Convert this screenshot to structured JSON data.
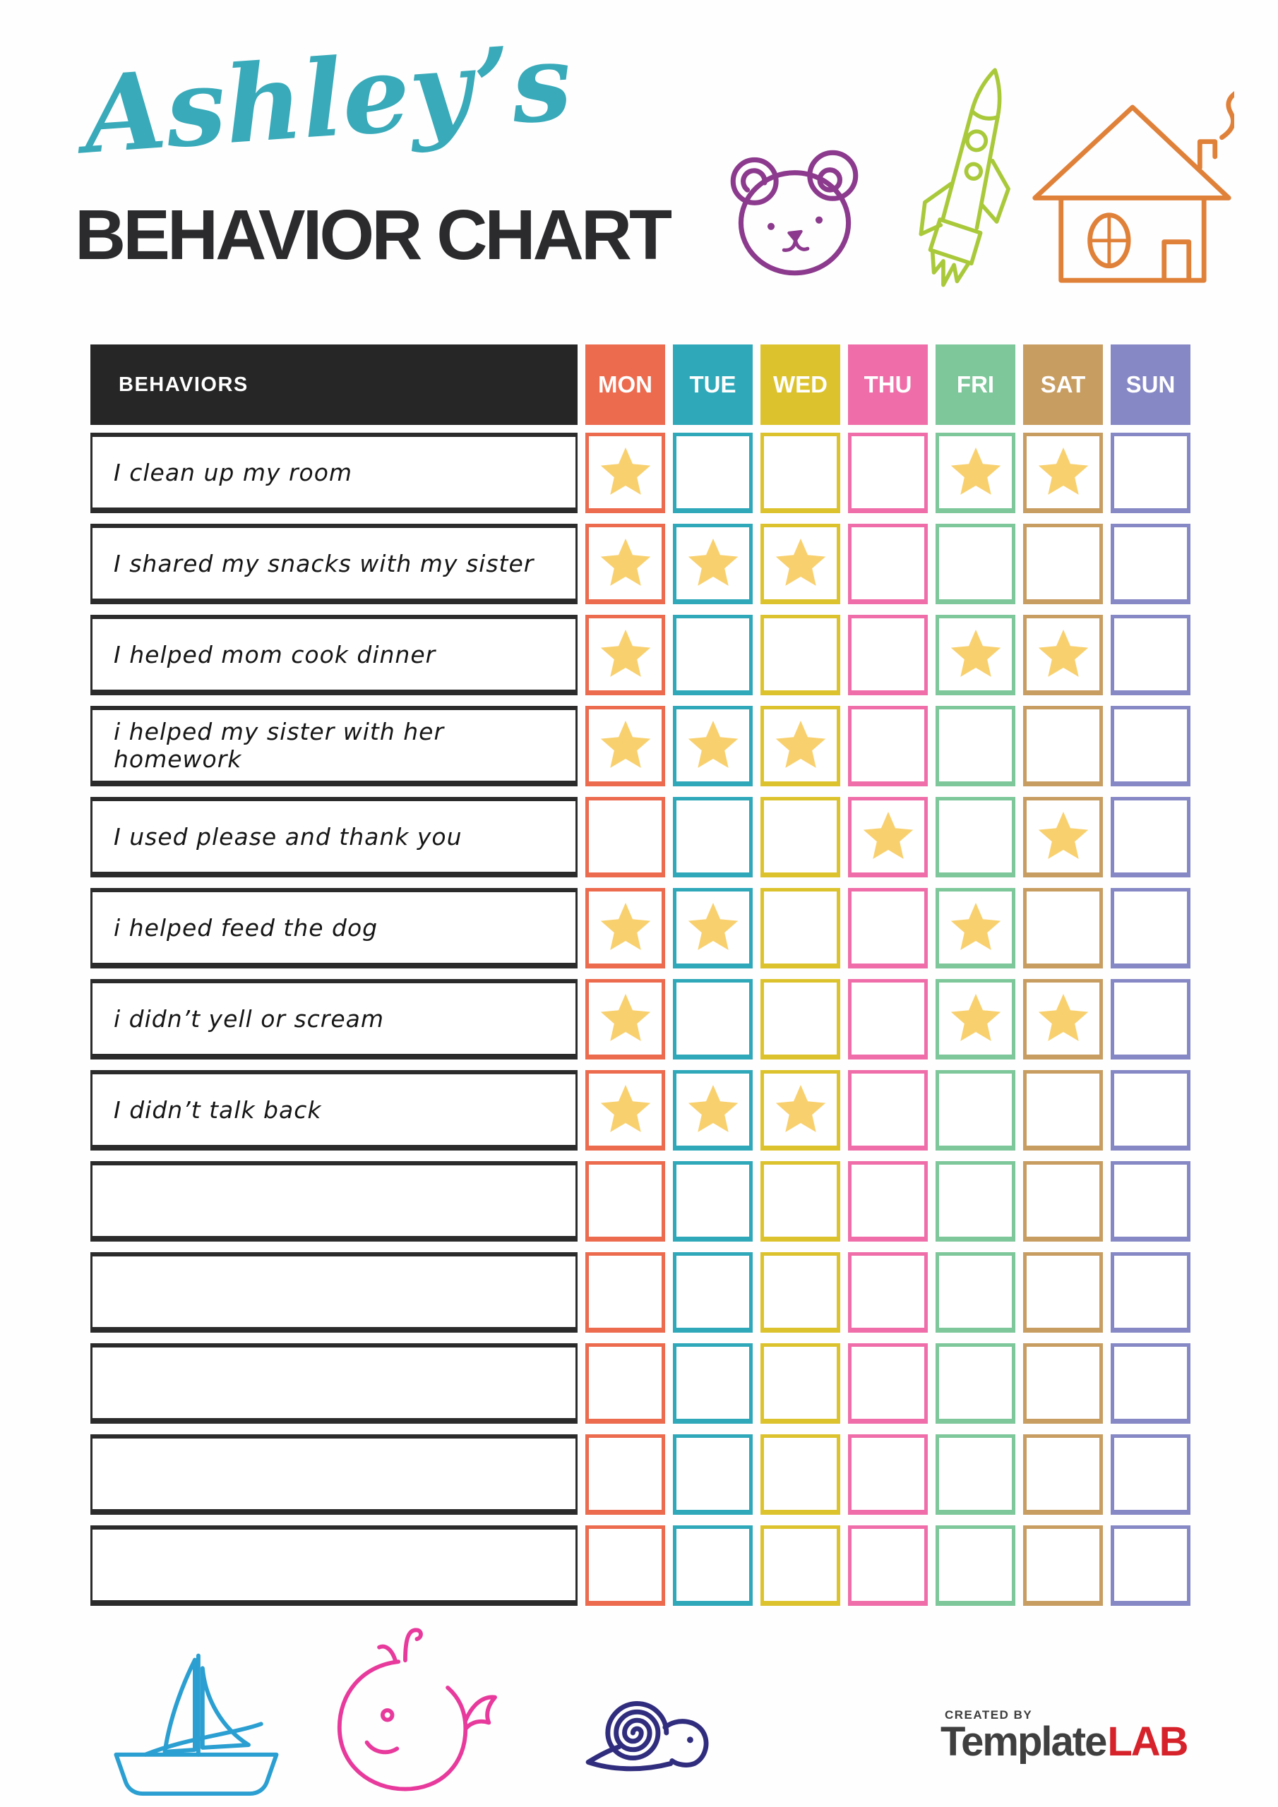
{
  "header": {
    "name": "Ashley’s",
    "title": "BEHAVIOR CHART",
    "name_color": "#38aab9",
    "title_color": "#2b2b2e"
  },
  "doodles": {
    "top": [
      "bear-doodle",
      "rocket-doodle",
      "house-doodle"
    ],
    "bottom": [
      "sailboat-doodle",
      "whale-doodle",
      "snail-doodle"
    ],
    "colors": {
      "bear": "#8c3a8d",
      "rocket": "#a9c93a",
      "house": "#e0813a",
      "sailboat": "#2b9fd1",
      "whale": "#e73a9c",
      "snail": "#312d7e"
    }
  },
  "table": {
    "behaviors_header": "BEHAVIORS",
    "header_bg": "#262626",
    "star_color": "#f8d06e",
    "days": [
      {
        "label": "MON",
        "color": "#ec6a4e"
      },
      {
        "label": "TUE",
        "color": "#2fa8ba"
      },
      {
        "label": "WED",
        "color": "#dcc32d"
      },
      {
        "label": "THU",
        "color": "#ef6ea9"
      },
      {
        "label": "FRI",
        "color": "#7dc79a"
      },
      {
        "label": "SAT",
        "color": "#c89d61"
      },
      {
        "label": "SUN",
        "color": "#8688c5"
      }
    ],
    "rows": [
      {
        "behavior": "I clean up my room",
        "stars": [
          "MON",
          "FRI",
          "SAT"
        ]
      },
      {
        "behavior": "I shared my snacks with my sister",
        "stars": [
          "MON",
          "TUE",
          "WED"
        ]
      },
      {
        "behavior": "I helped mom cook dinner",
        "stars": [
          "MON",
          "FRI",
          "SAT"
        ]
      },
      {
        "behavior": "i helped my sister with her homework",
        "stars": [
          "MON",
          "TUE",
          "WED"
        ]
      },
      {
        "behavior": "I used please and thank you",
        "stars": [
          "THU",
          "SAT"
        ]
      },
      {
        "behavior": "i helped feed the dog",
        "stars": [
          "MON",
          "TUE",
          "FRI"
        ]
      },
      {
        "behavior": "i didn’t yell or scream",
        "stars": [
          "MON",
          "FRI",
          "SAT"
        ]
      },
      {
        "behavior": "I didn’t talk back",
        "stars": [
          "MON",
          "TUE",
          "WED"
        ]
      },
      {
        "behavior": "",
        "stars": []
      },
      {
        "behavior": "",
        "stars": []
      },
      {
        "behavior": "",
        "stars": []
      },
      {
        "behavior": "",
        "stars": []
      },
      {
        "behavior": "",
        "stars": []
      }
    ]
  },
  "footer": {
    "created_by": "CREATED BY",
    "brand_dark": "Template",
    "brand_red": "LAB",
    "brand_red_color": "#d6222a"
  }
}
